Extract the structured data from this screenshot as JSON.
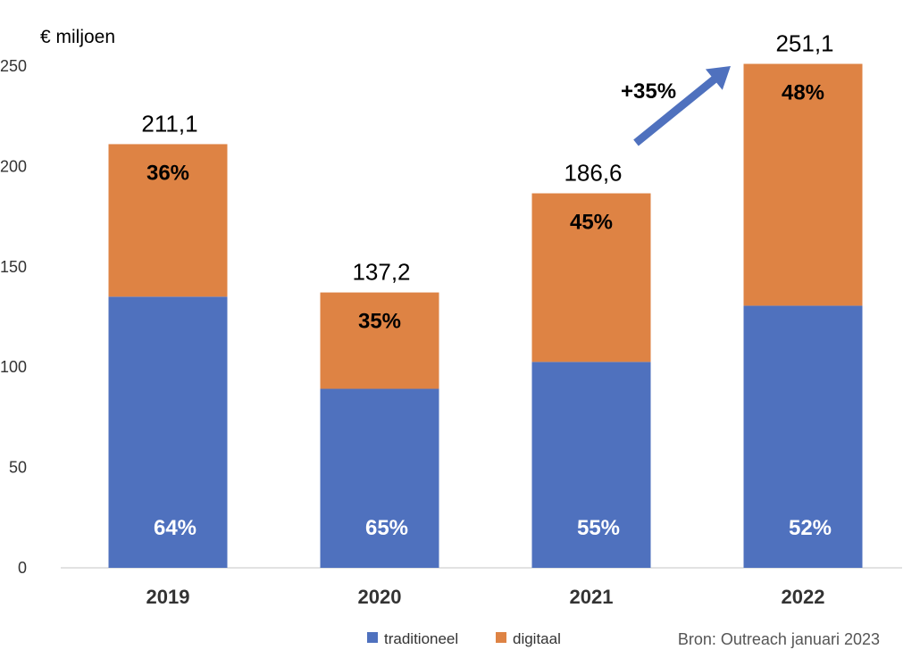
{
  "chart_data": {
    "type": "bar",
    "stacked": true,
    "categories": [
      "2019",
      "2020",
      "2021",
      "2022"
    ],
    "series": [
      {
        "name": "traditioneel",
        "values": [
          135.1,
          89.2,
          102.6,
          130.6
        ],
        "labels": [
          "64%",
          "65%",
          "55%",
          "52%"
        ]
      },
      {
        "name": "digitaal",
        "values": [
          76.0,
          48.0,
          84.0,
          120.5
        ],
        "labels": [
          "36%",
          "35%",
          "45%",
          "48%"
        ]
      }
    ],
    "totals": [
      "211,1",
      "137,2",
      "186,6",
      "251,1"
    ],
    "ylabel": "€ miljoen",
    "ylim": [
      0,
      250
    ],
    "yticks": [
      0,
      50,
      100,
      150,
      200,
      250
    ],
    "annotation": "+35%",
    "legend_position": "bottom",
    "grid": false,
    "colors": {
      "traditioneel": "#4F71BE",
      "digitaal": "#DE8344",
      "arrow": "#4F71BE"
    }
  },
  "source": "Bron: Outreach januari 2023"
}
